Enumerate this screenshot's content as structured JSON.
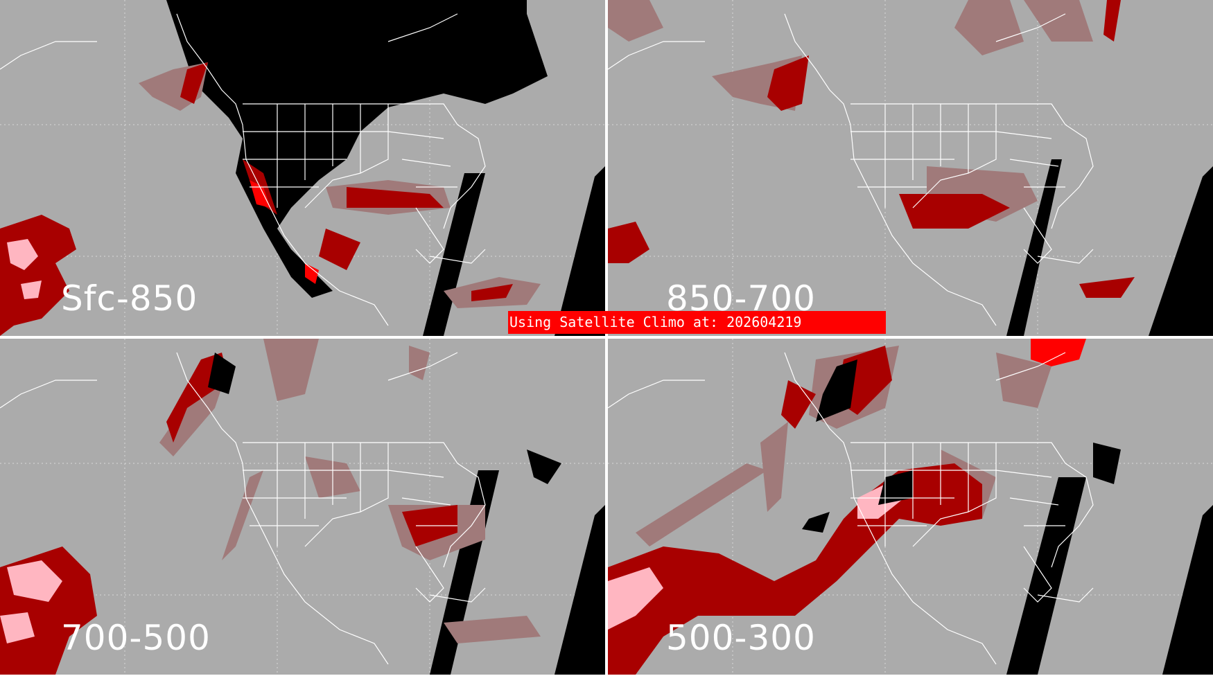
{
  "banner": {
    "text": "Using Satellite Climo at: 202604219",
    "color": "#ff0000"
  },
  "panels": [
    {
      "label": "Sfc-850"
    },
    {
      "label": "850-700"
    },
    {
      "label": "700-500"
    },
    {
      "label": "500-300"
    }
  ],
  "colors": {
    "background": "#ababab",
    "no_data": "#000000",
    "low": "#a07a7a",
    "medium": "#a80000",
    "high": "#ff0000",
    "highest": "#ffb6c1",
    "lines": "#ffffff"
  }
}
